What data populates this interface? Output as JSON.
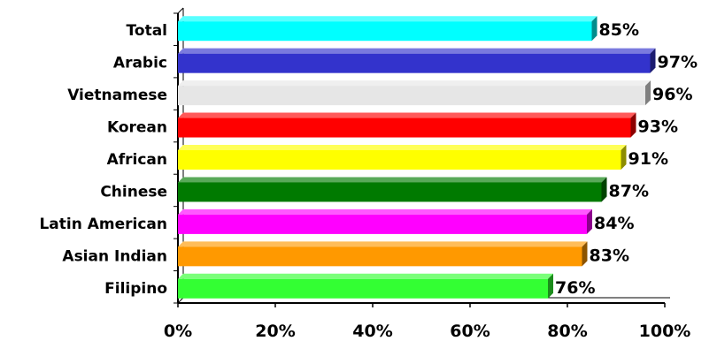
{
  "chart_data": {
    "type": "bar",
    "orientation": "horizontal",
    "title": "",
    "xlabel": "",
    "ylabel": "",
    "xlim": [
      0,
      100
    ],
    "x_ticks": [
      "0%",
      "20%",
      "40%",
      "60%",
      "80%",
      "100%"
    ],
    "grid": false,
    "legend": "none",
    "categories": [
      "Total",
      "Arabic",
      "Vietnamese",
      "Korean",
      "African",
      "Chinese",
      "Latin American",
      "Asian Indian",
      "Filipino"
    ],
    "values": [
      85,
      97,
      96,
      93,
      91,
      87,
      84,
      83,
      76
    ],
    "data_labels": [
      "85%",
      "97%",
      "96%",
      "93%",
      "91%",
      "87%",
      "84%",
      "83%",
      "76%"
    ],
    "colors": [
      "#00FFFF",
      "#3333CC",
      "#E6E6E6",
      "#FF0000",
      "#FFFF00",
      "#007A00",
      "#FF00FF",
      "#FF9900",
      "#33FF33"
    ]
  }
}
